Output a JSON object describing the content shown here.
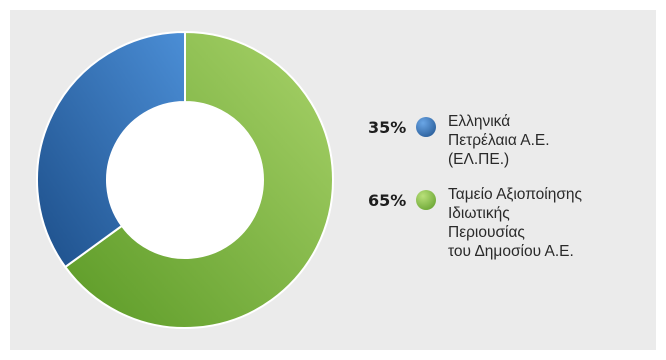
{
  "chart_data": {
    "type": "pie",
    "donut": true,
    "categories": [
      "Ελληνικά Πετρέλαια Α.Ε. (ΕΛ.ΠΕ.)",
      "Ταμείο Αξιοποίησης Ιδιωτικής Περιουσίας του Δημοσίου Α.Ε."
    ],
    "values": [
      35,
      65
    ],
    "value_labels": [
      "35%",
      "65%"
    ],
    "legend_lines": [
      "Ελληνικά\nΠετρέλαια Α.Ε.\n(ΕΛ.ΠΕ.)",
      "Ταμείο Αξιοποίησης\nΙδιωτικής\nΠεριουσίας\nτου Δημοσίου Α.Ε."
    ],
    "colors": [
      {
        "dark": "#1d4f8a",
        "light": "#4b8ed6"
      },
      {
        "dark": "#5b9a26",
        "light": "#a9d36a"
      }
    ],
    "legend_placement": "right"
  }
}
